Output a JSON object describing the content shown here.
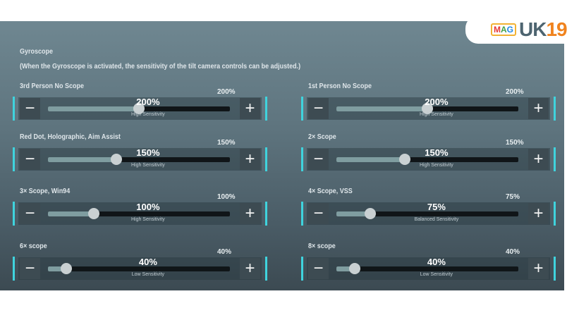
{
  "logo": {
    "mag": "MAG",
    "brand_a": "UK",
    "brand_b": "19"
  },
  "header": {
    "title": "Gyroscope",
    "description": "(When the Gyroscope is activated, the sensitivity of the tilt camera controls can be adjusted.)"
  },
  "slider_max_percent": 400,
  "accent": "#3fd3dd",
  "sliders": [
    {
      "label": "3rd Person No Scope",
      "value": 200,
      "value_text": "200%",
      "max_text": "200%",
      "sensitivity": "High Sensitivity"
    },
    {
      "label": "1st Person No Scope",
      "value": 200,
      "value_text": "200%",
      "max_text": "200%",
      "sensitivity": "High Sensitivity"
    },
    {
      "label": "Red Dot, Holographic, Aim Assist",
      "value": 150,
      "value_text": "150%",
      "max_text": "150%",
      "sensitivity": "High Sensitivity"
    },
    {
      "label": "2× Scope",
      "value": 150,
      "value_text": "150%",
      "max_text": "150%",
      "sensitivity": "High Sensitivity"
    },
    {
      "label": "3× Scope, Win94",
      "value": 100,
      "value_text": "100%",
      "max_text": "100%",
      "sensitivity": "High Sensitivity"
    },
    {
      "label": "4× Scope, VSS",
      "value": 75,
      "value_text": "75%",
      "max_text": "75%",
      "sensitivity": "Balanced Sensitivity"
    },
    {
      "label": "6× scope",
      "value": 40,
      "value_text": "40%",
      "max_text": "40%",
      "sensitivity": "Low Sensitivity"
    },
    {
      "label": "8× scope",
      "value": 40,
      "value_text": "40%",
      "max_text": "40%",
      "sensitivity": "Low Sensitivity"
    }
  ],
  "buttons": {
    "minus": "−",
    "plus": "+"
  }
}
